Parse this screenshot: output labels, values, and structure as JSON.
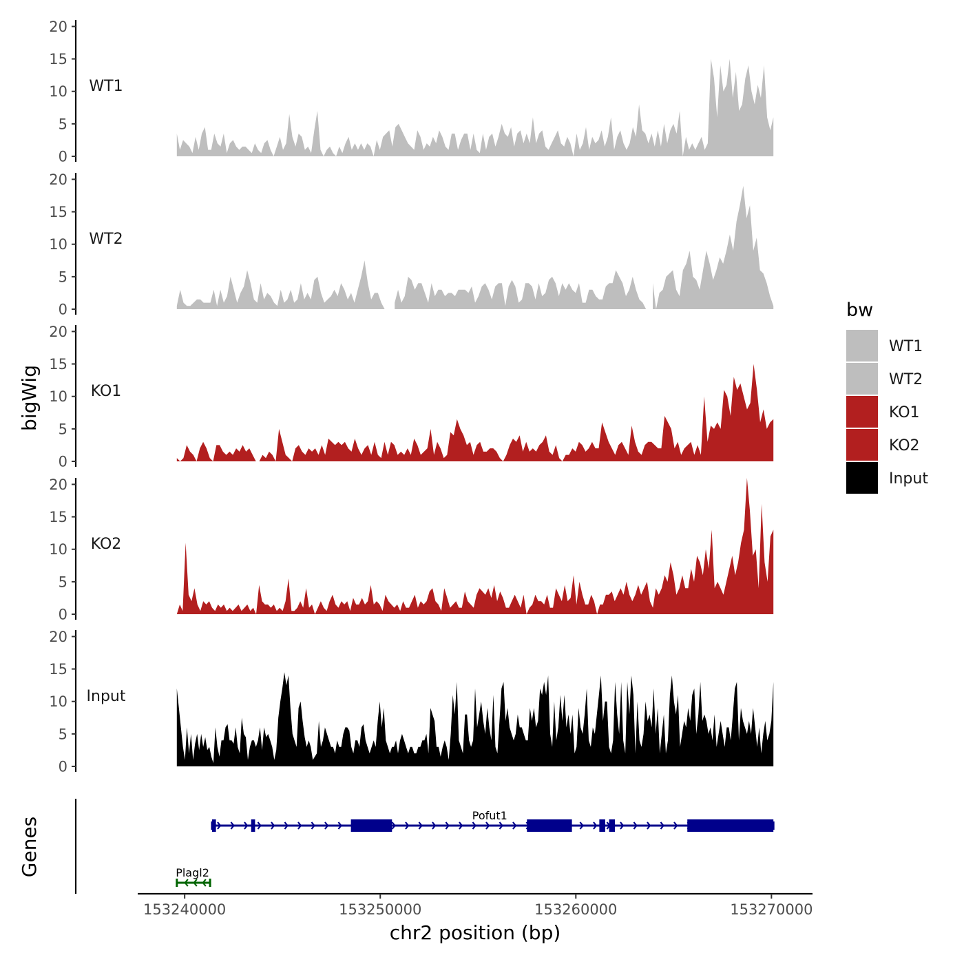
{
  "chart_data": {
    "type": "area",
    "subtype": "genome-track",
    "chromosome": "chr2",
    "xlabel": "chr2 position (bp)",
    "ylabel": "bigWig",
    "genes_label": "Genes",
    "xlim": [
      153237600,
      153272100
    ],
    "x_ticks": [
      153240000,
      153250000,
      153260000,
      153270000
    ],
    "x_tick_labels": [
      "153240000",
      "153250000",
      "153260000",
      "153270000"
    ],
    "ylim": [
      0,
      21
    ],
    "y_ticks": [
      0,
      5,
      10,
      15,
      20
    ],
    "y_tick_labels": [
      "0",
      "5",
      "10",
      "15",
      "20"
    ],
    "legend": {
      "title": "bw",
      "entries": [
        {
          "label": "WT1",
          "color": "#bebebe"
        },
        {
          "label": "WT2",
          "color": "#bebebe"
        },
        {
          "label": "KO1",
          "color": "#b21f1f"
        },
        {
          "label": "KO2",
          "color": "#b21f1f"
        },
        {
          "label": "Input",
          "color": "#000000"
        }
      ]
    },
    "series": [
      {
        "name": "WT1",
        "color": "#bebebe",
        "x_start": 153239600,
        "x_end": 153270100,
        "values": [
          3.5,
          1,
          2.5,
          2,
          1.5,
          0.5,
          3,
          1,
          3.5,
          4.5,
          1,
          1,
          3.5,
          2,
          1.5,
          3.5,
          0.5,
          2,
          2.5,
          1.5,
          1,
          1.5,
          1.5,
          1,
          0.5,
          2,
          1,
          0.5,
          2,
          2.5,
          1,
          0,
          1.5,
          3,
          1,
          2,
          6.5,
          3,
          1.5,
          3.5,
          3,
          1,
          1.5,
          0.5,
          4,
          7,
          1,
          0,
          1,
          1.5,
          0.5,
          0,
          1.5,
          0.5,
          2,
          3,
          1,
          2,
          1,
          2,
          1,
          2,
          1.5,
          0,
          2.5,
          1,
          3,
          3.5,
          4,
          1.5,
          4.5,
          5,
          4,
          3,
          2,
          1.5,
          1,
          4,
          3,
          1,
          2,
          1.5,
          3,
          2,
          4,
          3,
          1.5,
          1,
          3.5,
          3.5,
          1,
          2.5,
          3.5,
          3.5,
          1,
          3.5,
          1,
          0.5,
          3.5,
          1,
          3,
          3.5,
          1.5,
          3,
          5,
          3.5,
          3,
          4.5,
          1.5,
          3.5,
          4,
          2,
          3.5,
          2,
          6,
          2,
          3.5,
          4,
          1.5,
          1,
          2,
          3,
          4,
          2,
          1.5,
          3,
          2,
          0,
          3.5,
          1,
          2,
          4.5,
          1,
          3,
          2,
          2.5,
          4,
          1.5,
          3,
          6,
          1,
          3,
          4,
          2,
          1,
          2,
          4.5,
          3,
          8,
          4,
          3.5,
          2,
          3.5,
          1.5,
          4,
          1.5,
          5,
          2,
          4,
          5,
          3.5,
          7,
          0,
          3,
          1,
          2,
          1,
          2,
          3,
          1,
          2,
          15,
          12,
          6,
          14,
          10,
          11,
          15,
          9,
          13,
          7,
          8,
          12,
          14,
          10,
          8,
          11,
          9,
          14,
          6,
          4,
          6
        ]
      },
      {
        "name": "WT2",
        "color": "#bebebe",
        "x_start": 153239600,
        "x_end": 153270100,
        "values": [
          0.5,
          3,
          1,
          0.5,
          0.5,
          1,
          1.5,
          1.5,
          1,
          1,
          1,
          3,
          0.5,
          3,
          1,
          2,
          5,
          3,
          1,
          2.5,
          3.5,
          6,
          4,
          1.5,
          1,
          4,
          1.5,
          2.5,
          2,
          1,
          0.5,
          3,
          1,
          1.5,
          3,
          1,
          1.5,
          4,
          1.5,
          2.5,
          1.5,
          4.5,
          5,
          2.5,
          1,
          1.5,
          2,
          3,
          2,
          4,
          3,
          1.5,
          2.5,
          1,
          3,
          5,
          7.5,
          4,
          1.5,
          2.5,
          2.5,
          1,
          0,
          null,
          null,
          1,
          3,
          1,
          2,
          5,
          4.5,
          3,
          4,
          4,
          2.5,
          1,
          4,
          2,
          3,
          3,
          2,
          2.5,
          2.5,
          2,
          3,
          3,
          3,
          2.5,
          3.5,
          1,
          2,
          3.5,
          4,
          3,
          1.5,
          3.5,
          4,
          4,
          0.5,
          3.5,
          4.5,
          3.5,
          1,
          1.5,
          4,
          4,
          3.5,
          1.5,
          4,
          2,
          2.5,
          4.5,
          5,
          4,
          2,
          4,
          3,
          4,
          3,
          2.5,
          4,
          1,
          1,
          3,
          3,
          2,
          1.5,
          1.5,
          3.5,
          4,
          4,
          6,
          5,
          4,
          2,
          3,
          5,
          3,
          1.5,
          1,
          0,
          null,
          4,
          0,
          2.5,
          3,
          5,
          5.5,
          6,
          3,
          2,
          6,
          7,
          9,
          5,
          4.5,
          3,
          6,
          9,
          7,
          4.5,
          6,
          8,
          7,
          9,
          11.5,
          9,
          13.5,
          16,
          19,
          14,
          16,
          9,
          11,
          6,
          5.5,
          4,
          2,
          0.5
        ]
      },
      {
        "name": "KO1",
        "color": "#b21f1f",
        "x_start": 153239600,
        "x_end": 153270100,
        "values": [
          0.5,
          0,
          0.5,
          2.5,
          1.5,
          1,
          0,
          2,
          3,
          2,
          0.5,
          0,
          2.5,
          2.5,
          1.5,
          1,
          1.5,
          1,
          2,
          1.5,
          2.5,
          1.5,
          2,
          1,
          0,
          0,
          1,
          0.5,
          1.5,
          1,
          0,
          5,
          3,
          1,
          0.5,
          0,
          2,
          2.5,
          1.5,
          1,
          2,
          1.5,
          2,
          1,
          2.5,
          1,
          3.5,
          3,
          2.5,
          3,
          2.5,
          3,
          2,
          1.5,
          3.5,
          2,
          1,
          2,
          2.5,
          1,
          3,
          1,
          0.5,
          3,
          1,
          3,
          2.5,
          1,
          1.5,
          1,
          2,
          1,
          3.5,
          2.5,
          1,
          1.5,
          2,
          5,
          1,
          3,
          2,
          0.5,
          1,
          4.5,
          4,
          6.5,
          5,
          4,
          2.5,
          3,
          1,
          2.5,
          3,
          1.5,
          1.5,
          2,
          2,
          1.5,
          0.5,
          0,
          1,
          2.5,
          3.5,
          3,
          4,
          1.5,
          3,
          1.5,
          2,
          1.5,
          2.5,
          3,
          4,
          1.5,
          1,
          2.5,
          0.5,
          0,
          1,
          1,
          2,
          1.5,
          3,
          2.5,
          1.5,
          2,
          3,
          2,
          2,
          6,
          4.5,
          3,
          2,
          1,
          2.5,
          3,
          2,
          1,
          5.5,
          3,
          1.5,
          1,
          2.5,
          3,
          3,
          2.5,
          2,
          2,
          7,
          6,
          5,
          2,
          3,
          1,
          2,
          2.5,
          3,
          1,
          2.5,
          1,
          10,
          3,
          5.5,
          5,
          6,
          5,
          11,
          10,
          7,
          13,
          11,
          12,
          10,
          8,
          9,
          15,
          11,
          6,
          8,
          5,
          6,
          6.5
        ]
      },
      {
        "name": "KO2",
        "color": "#b21f1f",
        "x_start": 153239600,
        "x_end": 153270100,
        "values": [
          0,
          1.5,
          0.5,
          11,
          3,
          2,
          4,
          1.5,
          0.5,
          2,
          1.5,
          2,
          1,
          0.5,
          1.5,
          1,
          1.5,
          0.5,
          1,
          0.5,
          1,
          1.5,
          0.5,
          1,
          1.5,
          0.5,
          1,
          0,
          4.5,
          2,
          1.5,
          1.5,
          1,
          1.5,
          0.5,
          1,
          0.5,
          2,
          5.5,
          0.5,
          0.5,
          1,
          2,
          1,
          4,
          1,
          1.5,
          0,
          1,
          2,
          1,
          0.5,
          2,
          3,
          1.5,
          1,
          2,
          1.5,
          2,
          0.5,
          2.5,
          1.5,
          1.5,
          2.5,
          1.5,
          2,
          4.5,
          1.5,
          2,
          1.5,
          0.5,
          3,
          2,
          1.5,
          1,
          1.5,
          0.5,
          2,
          1,
          1,
          2,
          3,
          1,
          2,
          1.5,
          2,
          3.5,
          4,
          2,
          1.5,
          0.5,
          4,
          2.5,
          1,
          1.5,
          2,
          1,
          1,
          3.5,
          2,
          1.5,
          1,
          3,
          4,
          3.5,
          3,
          4,
          2.5,
          4.5,
          2,
          3.5,
          2.5,
          1,
          1,
          2,
          3,
          2,
          1,
          3,
          0,
          1,
          1.5,
          3,
          2,
          2,
          1.5,
          3,
          1,
          1,
          4,
          3,
          2,
          4.5,
          2,
          2.5,
          6,
          1.5,
          5,
          3,
          1.5,
          1.5,
          3,
          2,
          0,
          1.5,
          1.5,
          3,
          3,
          3.5,
          2,
          3,
          4,
          3,
          5,
          3,
          2,
          3,
          4.5,
          3,
          4,
          5,
          2,
          1,
          4,
          3,
          4,
          6,
          5,
          8,
          6,
          3,
          4,
          6,
          4,
          4,
          7,
          5,
          9,
          8,
          6,
          10,
          7,
          13,
          4,
          5,
          4,
          3,
          5,
          7,
          9,
          6,
          8,
          11,
          13,
          21,
          16,
          9,
          10,
          4,
          17,
          8,
          5,
          12,
          13
        ]
      },
      {
        "name": "Input",
        "color": "#000000",
        "x_start": 153239600,
        "x_end": 153270100,
        "values": [
          12,
          9,
          6,
          3,
          1,
          6,
          2,
          5,
          1,
          3.5,
          5,
          2.5,
          5,
          3,
          4.5,
          2.5,
          3,
          1.5,
          0.5,
          6,
          3,
          1.5,
          4,
          4,
          6,
          6.5,
          4,
          4,
          3.5,
          6,
          3,
          2,
          7.5,
          5,
          4.5,
          1,
          3,
          4,
          4,
          3,
          4,
          6,
          2.5,
          6,
          4.5,
          5,
          4,
          3,
          1,
          2.5,
          7.5,
          10,
          12,
          14.5,
          12.5,
          14,
          9,
          5,
          4,
          3,
          9,
          10,
          7,
          4.5,
          3,
          4,
          3,
          1,
          1.5,
          2,
          7,
          3,
          4,
          6,
          5,
          4,
          3,
          3,
          2,
          4,
          3,
          3,
          5,
          6,
          6,
          5.5,
          3,
          2,
          4,
          4,
          3,
          6,
          6.5,
          4,
          3,
          2,
          3,
          4,
          3,
          7,
          10,
          6,
          9,
          4,
          3,
          2,
          3,
          3,
          4,
          2,
          4,
          5,
          4,
          3,
          2,
          3,
          3,
          2,
          2,
          3,
          3,
          4,
          4,
          5,
          2,
          9,
          8,
          7,
          3,
          3,
          1.5,
          3,
          4,
          3,
          1,
          5,
          11,
          8,
          13,
          4,
          3,
          2,
          8,
          8,
          4,
          3,
          4,
          12,
          6,
          8,
          10,
          7,
          5,
          9,
          6,
          4,
          11,
          3,
          2,
          7,
          12,
          13,
          7,
          9,
          6,
          5,
          4,
          5,
          8,
          6,
          6,
          5,
          4,
          4,
          9,
          7,
          9,
          6,
          7,
          12,
          11,
          13,
          11,
          14,
          5,
          3,
          10,
          4,
          6,
          11,
          7,
          11,
          6,
          8,
          5,
          8,
          2,
          3,
          9,
          6,
          5,
          8,
          12,
          4,
          3,
          6,
          5,
          8,
          11,
          14,
          7,
          10,
          10,
          3,
          2,
          4,
          13,
          8,
          5,
          13,
          4,
          2,
          13,
          8,
          14,
          11,
          2,
          10,
          4,
          3,
          5,
          10,
          7,
          8,
          6,
          12,
          5,
          9,
          2,
          5,
          8,
          2,
          4,
          11,
          14,
          10,
          8,
          11,
          3,
          5,
          7,
          6,
          9,
          7,
          11,
          12,
          5,
          8,
          13,
          7,
          8,
          7,
          5,
          6,
          4,
          8,
          3,
          5,
          7,
          5,
          3,
          6,
          6,
          4,
          8,
          12,
          13,
          4,
          9,
          7,
          6,
          5,
          7,
          5,
          9,
          6,
          3,
          6,
          2,
          5,
          7,
          4,
          5,
          7,
          13
        ]
      }
    ],
    "genes": [
      {
        "name": "Pofut1",
        "strand": "+",
        "color": "#00008b",
        "start": 153241400,
        "end": 153270100,
        "exons": [
          [
            153241400,
            153241600
          ],
          [
            153243400,
            153243600
          ],
          [
            153248500,
            153250600
          ],
          [
            153257500,
            153259800
          ],
          [
            153261200,
            153261500
          ],
          [
            153261700,
            153262000
          ],
          [
            153265700,
            153270100
          ]
        ]
      },
      {
        "name": "Plagl2",
        "strand": "-",
        "color": "#006400",
        "start": 153239600,
        "end": 153241300,
        "exons": []
      }
    ]
  }
}
